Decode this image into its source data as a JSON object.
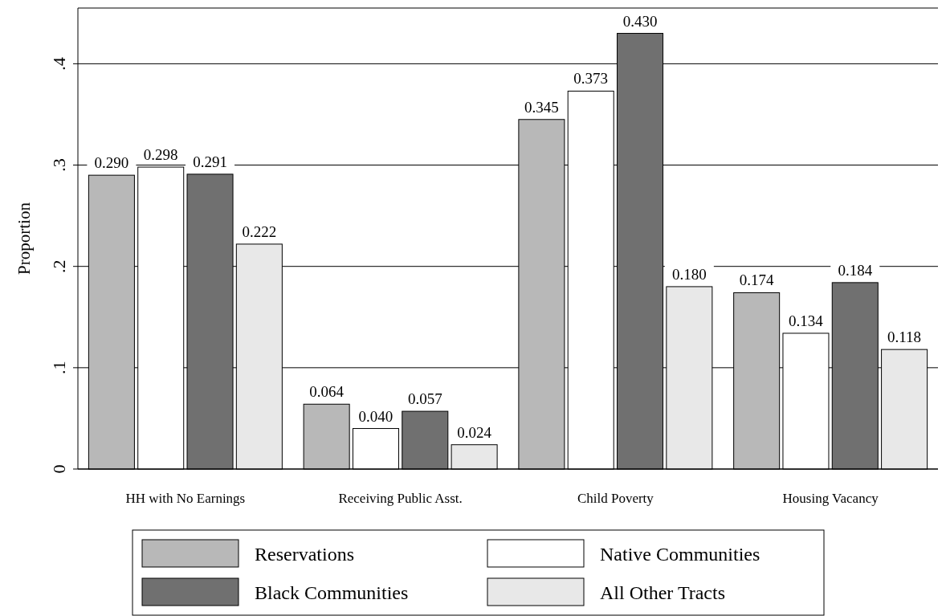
{
  "chart_data": {
    "type": "bar",
    "ylabel": "Proportion",
    "categories": [
      "HH with No Earnings",
      "Receiving Public Asst.",
      "Child Poverty",
      "Housing Vacancy"
    ],
    "series": [
      {
        "name": "Reservations",
        "color": "#b8b8b8",
        "values": [
          0.29,
          0.064,
          0.345,
          0.174
        ],
        "value_labels": [
          "0.290",
          "0.064",
          "0.345",
          "0.174"
        ]
      },
      {
        "name": "Native Communities",
        "color": "#ffffff",
        "values": [
          0.298,
          0.04,
          0.373,
          0.134
        ],
        "value_labels": [
          "0.298",
          "0.040",
          "0.373",
          "0.134"
        ]
      },
      {
        "name": "Black Communities",
        "color": "#707070",
        "values": [
          0.291,
          0.057,
          0.43,
          0.184
        ],
        "value_labels": [
          "0.291",
          "0.057",
          "0.430",
          "0.184"
        ]
      },
      {
        "name": "All Other Tracts",
        "color": "#e8e8e8",
        "values": [
          0.222,
          0.024,
          0.18,
          0.118
        ],
        "value_labels": [
          "0.222",
          "0.024",
          "0.180",
          "0.118"
        ]
      }
    ],
    "ylim": [
      0,
      0.455
    ],
    "yticks": [
      0,
      {
        "value": 0.1,
        "label": ".1"
      },
      {
        "value": 0.2,
        "label": ".2"
      },
      {
        "value": 0.3,
        "label": ".3"
      },
      {
        "value": 0.4,
        "label": ".4"
      }
    ],
    "grid": "y",
    "legend": "bottom"
  }
}
